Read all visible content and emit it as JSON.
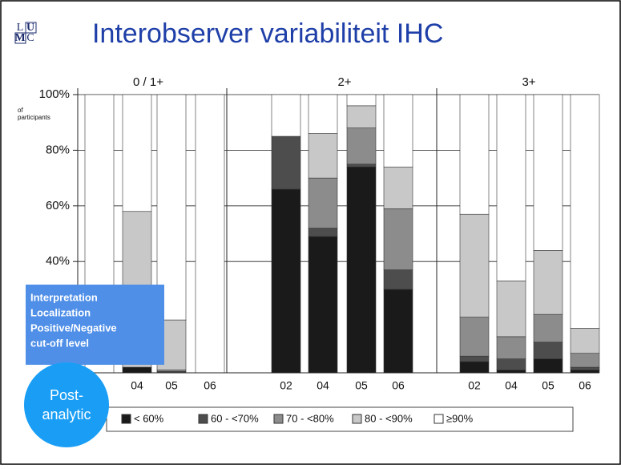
{
  "logo": {
    "letters": [
      "L",
      "U",
      "M",
      "C"
    ]
  },
  "overlay": {
    "lines": [
      "Interpretation",
      "Localization",
      "Positive/Negative",
      "cut-off level"
    ]
  },
  "badge": {
    "lines": [
      "Post-",
      "analytic"
    ]
  },
  "chart_data": {
    "type": "stacked_bar",
    "title": "Interobserver variabiliteit IHC",
    "y_axis_note": [
      "of",
      "participants"
    ],
    "group_labels": [
      "0 / 1+",
      "2+",
      "3+"
    ],
    "categories": [
      null,
      "04",
      "05",
      "06",
      "02",
      "04",
      "05",
      "06",
      "02",
      "04",
      "05",
      "06"
    ],
    "ylim": [
      0,
      100
    ],
    "yticks": [
      {
        "value": 40,
        "label": "40%"
      },
      {
        "value": 60,
        "label": "60%"
      },
      {
        "value": 80,
        "label": "80%"
      },
      {
        "value": 100,
        "label": "100%"
      }
    ],
    "grid": true,
    "series": [
      {
        "name": "< 60%",
        "color": "#1a1a1a",
        "values": [
          0,
          2,
          0,
          0,
          66,
          49,
          74,
          30,
          4,
          1,
          5,
          1
        ]
      },
      {
        "name": "60 - <70%",
        "color": "#4d4d4d",
        "values": [
          0,
          0,
          0.5,
          0,
          19,
          3,
          1,
          7,
          2,
          4,
          6,
          1
        ]
      },
      {
        "name": "70 - <80%",
        "color": "#8c8c8c",
        "values": [
          0,
          0,
          0.5,
          0,
          0,
          18,
          13,
          22,
          14,
          8,
          10,
          5
        ]
      },
      {
        "name": "80 - <90%",
        "color": "#c8c8c8",
        "values": [
          0,
          56,
          18,
          0,
          0,
          16,
          8,
          15,
          37,
          20,
          23,
          9
        ]
      },
      {
        "name": "≥90%",
        "color": "#ffffff",
        "values": [
          100,
          42,
          81,
          100,
          15,
          14,
          4,
          26,
          43,
          67,
          56,
          84
        ]
      }
    ]
  }
}
